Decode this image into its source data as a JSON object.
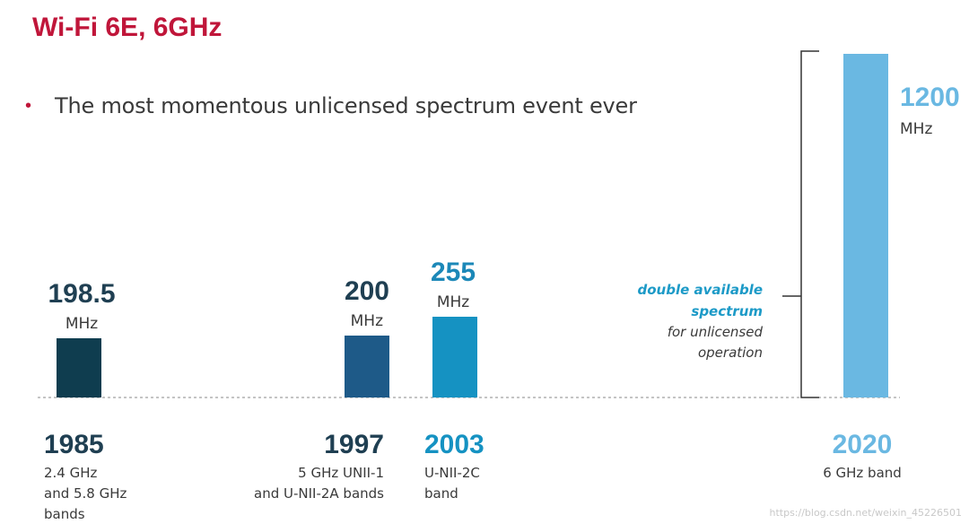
{
  "title": "Wi-Fi 6E, 6GHz",
  "bullet": "The most momentous unlicensed spectrum event ever",
  "bullet_color": "#c0163a",
  "annotation": {
    "line1": "double available",
    "line2": "spectrum",
    "line3": "for unlicensed",
    "line4": "operation"
  },
  "watermark": "https://blog.csdn.net/weixin_45226501",
  "chart_data": {
    "type": "bar",
    "categories": [
      "1985",
      "1997",
      "2003",
      "2020"
    ],
    "category_descriptions": [
      [
        "2.4 GHz",
        "and 5.8 GHz",
        "bands"
      ],
      [
        "5 GHz UNII-1",
        "and U-NII-2A bands"
      ],
      [
        "U-NII-2C",
        "band"
      ],
      [
        "6 GHz band"
      ]
    ],
    "values": [
      198.5,
      200,
      255,
      1200
    ],
    "value_labels": [
      "198.5",
      "200",
      "255",
      "1200"
    ],
    "unit": "MHz",
    "colors": [
      "#0f3d4f",
      "#1e5a88",
      "#1592c2",
      "#6ab8e2"
    ],
    "grid": false
  }
}
